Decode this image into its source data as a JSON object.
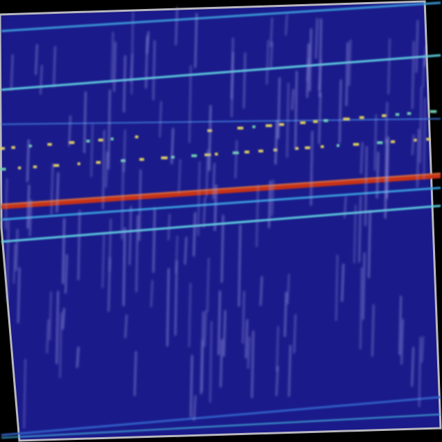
{
  "colors": {
    "background": "#1a1a8a",
    "frame": "#b8b8c0",
    "cyan_line": "#5fd0e0",
    "red_line": "#c83018",
    "yellow_dot": "#e0d060",
    "streak": "#a0a0e8"
  }
}
